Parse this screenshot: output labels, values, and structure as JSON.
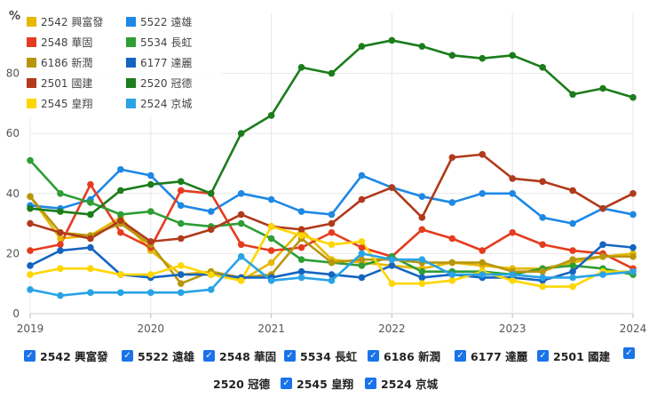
{
  "chart_data": {
    "type": "line",
    "ylabel": "%",
    "ylim": [
      0,
      100
    ],
    "yticks": [
      0,
      20,
      40,
      60,
      80
    ],
    "xlim": [
      2019,
      2024
    ],
    "xticks": [
      "2019",
      "2020",
      "2021",
      "2022",
      "2023",
      "2024"
    ],
    "grid": true,
    "x": [
      2019.0,
      2019.25,
      2019.5,
      2019.75,
      2020.0,
      2020.25,
      2020.5,
      2020.75,
      2021.0,
      2021.25,
      2021.5,
      2021.75,
      2022.0,
      2022.25,
      2022.5,
      2022.75,
      2023.0,
      2023.25,
      2023.5,
      2023.75,
      2024.0
    ],
    "series": [
      {
        "name": "2542 興富發",
        "color": "#e6b800",
        "values": [
          39,
          25,
          26,
          32,
          21,
          13,
          14,
          11,
          17,
          28,
          18,
          17,
          16,
          15,
          17,
          16,
          15,
          15,
          17,
          19,
          20
        ]
      },
      {
        "name": "5522 遠雄",
        "color": "#1e88e5",
        "values": [
          36,
          35,
          38,
          48,
          46,
          36,
          34,
          40,
          38,
          34,
          33,
          46,
          42,
          39,
          37,
          40,
          40,
          32,
          30,
          35,
          33
        ]
      },
      {
        "name": "2548 華固",
        "color": "#e53c1f",
        "values": [
          21,
          23,
          43,
          27,
          22,
          41,
          40,
          23,
          21,
          22,
          27,
          22,
          19,
          28,
          25,
          21,
          27,
          23,
          21,
          20,
          15
        ]
      },
      {
        "name": "5534 長虹",
        "color": "#2e9e35",
        "values": [
          51,
          40,
          37,
          33,
          34,
          30,
          29,
          30,
          25,
          18,
          17,
          16,
          19,
          14,
          14,
          14,
          13,
          15,
          16,
          15,
          13
        ]
      },
      {
        "name": "6186 新潤",
        "color": "#b8960c",
        "values": [
          39,
          27,
          26,
          30,
          23,
          10,
          14,
          12,
          13,
          25,
          17,
          18,
          18,
          17,
          17,
          17,
          14,
          14,
          18,
          19,
          19
        ]
      },
      {
        "name": "6177 達麗",
        "color": "#1565c0",
        "values": [
          16,
          21,
          22,
          13,
          12,
          13,
          13,
          12,
          12,
          14,
          13,
          12,
          16,
          12,
          13,
          12,
          12,
          11,
          14,
          23,
          22
        ]
      },
      {
        "name": "2501 國建",
        "color": "#b03a1a",
        "values": [
          30,
          27,
          25,
          31,
          24,
          25,
          28,
          33,
          29,
          28,
          30,
          38,
          42,
          32,
          52,
          53,
          45,
          44,
          41,
          35,
          40
        ]
      },
      {
        "name": "2520 冠德",
        "color": "#1b7d1b",
        "values": [
          35,
          34,
          33,
          41,
          43,
          44,
          40,
          60,
          66,
          82,
          80,
          89,
          91,
          89,
          86,
          85,
          86,
          82,
          73,
          75,
          72
        ]
      },
      {
        "name": "2545 皇翔",
        "color": "#ffd600",
        "values": [
          13,
          15,
          15,
          13,
          13,
          16,
          13,
          11,
          29,
          26,
          23,
          24,
          10,
          10,
          11,
          14,
          11,
          9,
          9,
          14,
          14
        ]
      },
      {
        "name": "2524 京城",
        "color": "#29a3e6",
        "values": [
          8,
          6,
          7,
          7,
          7,
          7,
          8,
          19,
          11,
          12,
          11,
          20,
          18,
          18,
          13,
          13,
          13,
          12,
          12,
          13,
          14
        ]
      }
    ]
  },
  "filters": [
    {
      "label": "2542 興富發",
      "checked": true
    },
    {
      "label": "5522 遠雄",
      "checked": true
    },
    {
      "label": "2548 華固",
      "checked": true
    },
    {
      "label": "5534 長虹",
      "checked": true
    },
    {
      "label": "6186 新潤",
      "checked": true
    },
    {
      "label": "6177 達麗",
      "checked": true
    },
    {
      "label": "2501 國建",
      "checked": true
    },
    {
      "label": "2520 冠德",
      "checked": true
    },
    {
      "label": "2545 皇翔",
      "checked": true
    },
    {
      "label": "2524 京城",
      "checked": true
    }
  ]
}
